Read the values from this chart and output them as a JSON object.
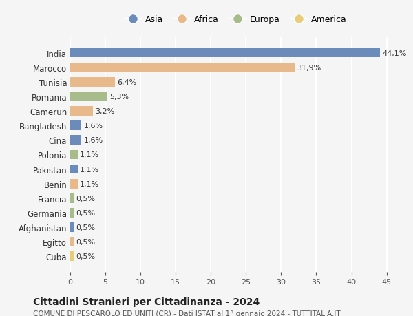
{
  "countries": [
    "India",
    "Marocco",
    "Tunisia",
    "Romania",
    "Camerun",
    "Bangladesh",
    "Cina",
    "Polonia",
    "Pakistan",
    "Benin",
    "Francia",
    "Germania",
    "Afghanistan",
    "Egitto",
    "Cuba"
  ],
  "values": [
    44.1,
    31.9,
    6.4,
    5.3,
    3.2,
    1.6,
    1.6,
    1.1,
    1.1,
    1.1,
    0.5,
    0.5,
    0.5,
    0.5,
    0.5
  ],
  "labels": [
    "44,1%",
    "31,9%",
    "6,4%",
    "5,3%",
    "3,2%",
    "1,6%",
    "1,6%",
    "1,1%",
    "1,1%",
    "1,1%",
    "0,5%",
    "0,5%",
    "0,5%",
    "0,5%",
    "0,5%"
  ],
  "continents": [
    "Asia",
    "Africa",
    "Africa",
    "Europa",
    "Africa",
    "Asia",
    "Asia",
    "Europa",
    "Asia",
    "Africa",
    "Europa",
    "Europa",
    "Asia",
    "Africa",
    "America"
  ],
  "continent_colors": {
    "Asia": "#6b8cba",
    "Africa": "#e8b98a",
    "Europa": "#a8bb8a",
    "America": "#e8cc7a"
  },
  "legend_order": [
    "Asia",
    "Africa",
    "Europa",
    "America"
  ],
  "title": "Cittadini Stranieri per Cittadinanza - 2024",
  "subtitle": "COMUNE DI PESCAROLO ED UNITI (CR) - Dati ISTAT al 1° gennaio 2024 - TUTTITALIA.IT",
  "xlim": [
    0,
    47
  ],
  "xticks": [
    0,
    5,
    10,
    15,
    20,
    25,
    30,
    35,
    40,
    45
  ],
  "bg_color": "#f5f5f5",
  "grid_color": "#ffffff",
  "bar_height": 0.65
}
